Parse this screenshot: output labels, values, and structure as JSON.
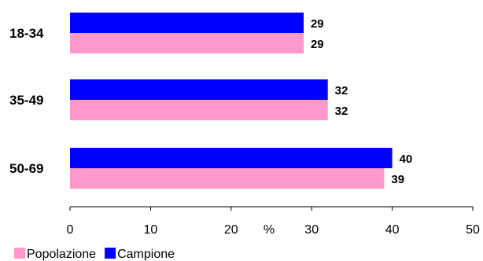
{
  "chart_data": {
    "type": "bar",
    "orientation": "horizontal",
    "categories": [
      "18-34",
      "35-49",
      "50-69"
    ],
    "series": [
      {
        "name": "Campione",
        "color": "#0000ff",
        "values": [
          29,
          32,
          40
        ]
      },
      {
        "name": "Popolazione",
        "color": "#ff99cc",
        "values": [
          29,
          32,
          39
        ]
      }
    ],
    "data_labels": {
      "Campione": [
        "29",
        "32",
        "40"
      ],
      "Popolazione": [
        "29",
        "32",
        "39"
      ]
    },
    "xlim": [
      0,
      50
    ],
    "xticks": [
      0,
      10,
      20,
      30,
      40,
      50
    ],
    "x_unit": "%",
    "grid": false,
    "legend": {
      "position": "bottom-left",
      "items": [
        {
          "name": "Popolazione",
          "color": "#ff99cc"
        },
        {
          "name": "Campione",
          "color": "#0000ff"
        }
      ]
    }
  }
}
